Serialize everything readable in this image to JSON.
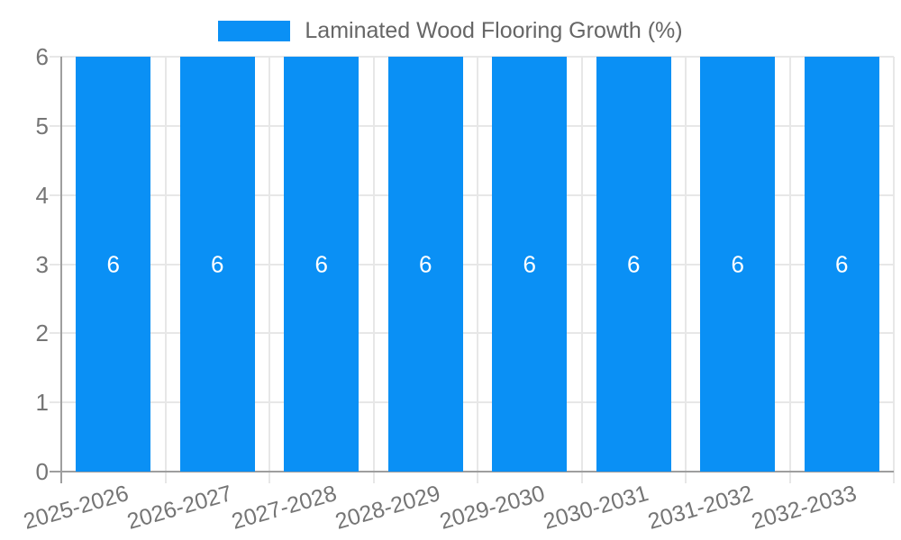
{
  "chart_data": {
    "type": "bar",
    "title": "",
    "legend": {
      "position": "top",
      "label": "Laminated Wood Flooring Growth (%)"
    },
    "categories": [
      "2025-2026",
      "2026-2027",
      "2027-2028",
      "2028-2029",
      "2029-2030",
      "2030-2031",
      "2031-2032",
      "2032-2033"
    ],
    "series": [
      {
        "name": "Laminated Wood Flooring Growth (%)",
        "values": [
          6,
          6,
          6,
          6,
          6,
          6,
          6,
          6
        ]
      }
    ],
    "show_value_labels": true,
    "xlabel": "",
    "ylabel": "",
    "ylim": [
      0,
      6
    ],
    "yticks": [
      0,
      1,
      2,
      3,
      4,
      5,
      6
    ],
    "grid": true,
    "colors": {
      "bar": "#0a90f5",
      "grid": "#e7e7e7",
      "axis": "#9e9e9e",
      "tick_label": "#757575",
      "legend_label": "#666666",
      "value_label": "#ffffff",
      "background": "#ffffff"
    }
  }
}
